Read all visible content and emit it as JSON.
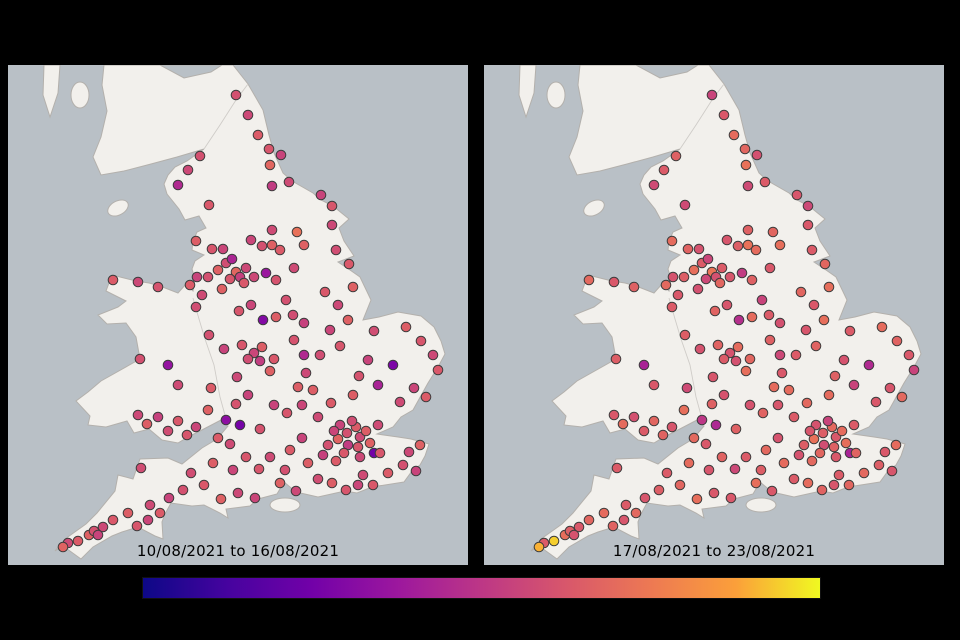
{
  "figure": {
    "background": "#000000",
    "sea_color": "#b9c0c6",
    "land_color": "#f2f0ec",
    "coast_color": "#b3b0ac",
    "border_color": "#cfccc8"
  },
  "panels": [
    {
      "label": "10/08/2021 to 16/08/2021"
    },
    {
      "label": "17/08/2021 to 23/08/2021"
    }
  ],
  "colorbar": {
    "colormap": "plasma",
    "orientation": "horizontal",
    "tick_labels": [],
    "stops": [
      "#0d0887",
      "#46039f",
      "#7201a8",
      "#9c179e",
      "#bd3786",
      "#d8576b",
      "#ed7953",
      "#fb9f3a",
      "#f0f921"
    ]
  },
  "chart_data": {
    "type": "scatter",
    "title": "",
    "legend": "plasma colorbar, no numeric tick labels shown",
    "panel_labels": [
      "10/08/2021 to 16/08/2021",
      "17/08/2021 to 23/08/2021"
    ],
    "marker": {
      "radius": 4.8,
      "edge_color": "#3d3d3d",
      "edge_width": 1
    },
    "value_scale": {
      "min": 0,
      "max": 1
    },
    "sites_format": "[x, y, value_week1, value_week2] ; x,y in 460x500 map coords ; values are colormap fractions",
    "sites": [
      [
        261,
        84,
        0.62,
        0.68
      ],
      [
        273,
        90,
        0.55,
        0.6
      ],
      [
        262,
        100,
        0.68,
        0.72
      ],
      [
        281,
        117,
        0.58,
        0.64
      ],
      [
        264,
        121,
        0.52,
        0.58
      ],
      [
        250,
        70,
        0.64,
        0.7
      ],
      [
        240,
        50,
        0.57,
        0.63
      ],
      [
        228,
        30,
        0.6,
        0.55
      ],
      [
        192,
        91,
        0.6,
        0.66
      ],
      [
        170,
        120,
        0.45,
        0.58
      ],
      [
        201,
        140,
        0.63,
        0.58
      ],
      [
        180,
        105,
        0.57,
        0.64
      ],
      [
        289,
        167,
        0.72,
        0.68
      ],
      [
        264,
        165,
        0.58,
        0.66
      ],
      [
        324,
        141,
        0.62,
        0.57
      ],
      [
        313,
        130,
        0.55,
        0.62
      ],
      [
        264,
        180,
        0.66,
        0.72
      ],
      [
        254,
        181,
        0.6,
        0.65
      ],
      [
        243,
        175,
        0.56,
        0.62
      ],
      [
        272,
        185,
        0.64,
        0.7
      ],
      [
        286,
        203,
        0.58,
        0.63
      ],
      [
        268,
        215,
        0.61,
        0.66
      ],
      [
        258,
        208,
        0.37,
        0.52
      ],
      [
        296,
        180,
        0.66,
        0.71
      ],
      [
        328,
        185,
        0.59,
        0.64
      ],
      [
        341,
        199,
        0.63,
        0.68
      ],
      [
        324,
        160,
        0.57,
        0.63
      ],
      [
        204,
        184,
        0.62,
        0.67
      ],
      [
        215,
        184,
        0.56,
        0.61
      ],
      [
        188,
        176,
        0.65,
        0.7
      ],
      [
        218,
        198,
        0.59,
        0.64
      ],
      [
        228,
        207,
        0.68,
        0.73
      ],
      [
        232,
        212,
        0.54,
        0.6
      ],
      [
        222,
        214,
        0.62,
        0.57
      ],
      [
        238,
        203,
        0.57,
        0.64
      ],
      [
        210,
        205,
        0.66,
        0.71
      ],
      [
        200,
        212,
        0.6,
        0.65
      ],
      [
        189,
        212,
        0.55,
        0.61
      ],
      [
        182,
        220,
        0.64,
        0.69
      ],
      [
        194,
        230,
        0.58,
        0.63
      ],
      [
        224,
        194,
        0.43,
        0.56
      ],
      [
        236,
        218,
        0.63,
        0.68
      ],
      [
        246,
        212,
        0.57,
        0.62
      ],
      [
        214,
        224,
        0.66,
        0.6
      ],
      [
        150,
        222,
        0.61,
        0.66
      ],
      [
        130,
        217,
        0.57,
        0.63
      ],
      [
        105,
        215,
        0.64,
        0.69
      ],
      [
        188,
        242,
        0.59,
        0.64
      ],
      [
        231,
        246,
        0.62,
        0.67
      ],
      [
        243,
        240,
        0.56,
        0.62
      ],
      [
        268,
        252,
        0.65,
        0.7
      ],
      [
        285,
        250,
        0.59,
        0.64
      ],
      [
        296,
        258,
        0.54,
        0.6
      ],
      [
        317,
        227,
        0.63,
        0.68
      ],
      [
        330,
        240,
        0.57,
        0.63
      ],
      [
        345,
        222,
        0.66,
        0.71
      ],
      [
        278,
        235,
        0.6,
        0.55
      ],
      [
        255,
        255,
        0.3,
        0.47
      ],
      [
        234,
        280,
        0.62,
        0.67
      ],
      [
        246,
        288,
        0.56,
        0.61
      ],
      [
        254,
        282,
        0.65,
        0.7
      ],
      [
        240,
        294,
        0.59,
        0.64
      ],
      [
        252,
        296,
        0.53,
        0.6
      ],
      [
        266,
        294,
        0.63,
        0.68
      ],
      [
        229,
        312,
        0.57,
        0.62
      ],
      [
        262,
        306,
        0.66,
        0.71
      ],
      [
        201,
        270,
        0.6,
        0.65
      ],
      [
        216,
        284,
        0.55,
        0.61
      ],
      [
        203,
        323,
        0.64,
        0.58
      ],
      [
        286,
        275,
        0.61,
        0.66
      ],
      [
        298,
        308,
        0.57,
        0.63
      ],
      [
        305,
        325,
        0.65,
        0.7
      ],
      [
        312,
        290,
        0.59,
        0.64
      ],
      [
        332,
        281,
        0.62,
        0.67
      ],
      [
        322,
        265,
        0.56,
        0.62
      ],
      [
        340,
        255,
        0.66,
        0.71
      ],
      [
        296,
        290,
        0.45,
        0.57
      ],
      [
        413,
        276,
        0.62,
        0.67
      ],
      [
        425,
        290,
        0.57,
        0.63
      ],
      [
        398,
        262,
        0.65,
        0.7
      ],
      [
        366,
        266,
        0.59,
        0.64
      ],
      [
        430,
        305,
        0.63,
        0.55
      ],
      [
        406,
        323,
        0.56,
        0.62
      ],
      [
        418,
        332,
        0.64,
        0.69
      ],
      [
        392,
        337,
        0.58,
        0.63
      ],
      [
        385,
        300,
        0.28,
        0.45
      ],
      [
        370,
        320,
        0.42,
        0.55
      ],
      [
        351,
        311,
        0.61,
        0.66
      ],
      [
        360,
        295,
        0.55,
        0.61
      ],
      [
        345,
        330,
        0.65,
        0.7
      ],
      [
        279,
        348,
        0.62,
        0.67
      ],
      [
        294,
        340,
        0.56,
        0.62
      ],
      [
        323,
        338,
        0.64,
        0.69
      ],
      [
        310,
        352,
        0.58,
        0.64
      ],
      [
        252,
        364,
        0.61,
        0.66
      ],
      [
        266,
        340,
        0.55,
        0.61
      ],
      [
        290,
        322,
        0.65,
        0.7
      ],
      [
        339,
        368,
        0.6,
        0.65
      ],
      [
        332,
        360,
        0.55,
        0.61
      ],
      [
        348,
        362,
        0.64,
        0.69
      ],
      [
        352,
        372,
        0.58,
        0.63
      ],
      [
        330,
        374,
        0.67,
        0.72
      ],
      [
        340,
        380,
        0.52,
        0.59
      ],
      [
        350,
        382,
        0.62,
        0.66
      ],
      [
        326,
        366,
        0.56,
        0.62
      ],
      [
        358,
        366,
        0.65,
        0.7
      ],
      [
        344,
        356,
        0.59,
        0.55
      ],
      [
        336,
        388,
        0.63,
        0.68
      ],
      [
        352,
        392,
        0.57,
        0.63
      ],
      [
        362,
        378,
        0.66,
        0.71
      ],
      [
        320,
        380,
        0.6,
        0.65
      ],
      [
        315,
        390,
        0.54,
        0.61
      ],
      [
        328,
        396,
        0.64,
        0.69
      ],
      [
        370,
        360,
        0.58,
        0.64
      ],
      [
        366,
        388,
        0.25,
        0.42
      ],
      [
        372,
        388,
        0.62,
        0.67
      ],
      [
        401,
        387,
        0.57,
        0.63
      ],
      [
        412,
        380,
        0.66,
        0.7
      ],
      [
        395,
        400,
        0.6,
        0.65
      ],
      [
        408,
        406,
        0.55,
        0.62
      ],
      [
        380,
        408,
        0.64,
        0.69
      ],
      [
        355,
        410,
        0.58,
        0.64
      ],
      [
        338,
        425,
        0.62,
        0.67
      ],
      [
        350,
        420,
        0.56,
        0.62
      ],
      [
        324,
        418,
        0.65,
        0.7
      ],
      [
        310,
        414,
        0.59,
        0.64
      ],
      [
        365,
        420,
        0.63,
        0.68
      ],
      [
        288,
        426,
        0.57,
        0.63
      ],
      [
        272,
        418,
        0.66,
        0.71
      ],
      [
        277,
        405,
        0.6,
        0.65
      ],
      [
        294,
        373,
        0.55,
        0.61
      ],
      [
        282,
        385,
        0.64,
        0.69
      ],
      [
        262,
        392,
        0.58,
        0.64
      ],
      [
        251,
        404,
        0.62,
        0.57
      ],
      [
        247,
        433,
        0.56,
        0.63
      ],
      [
        300,
        398,
        0.65,
        0.7
      ],
      [
        228,
        339,
        0.61,
        0.66
      ],
      [
        240,
        330,
        0.55,
        0.61
      ],
      [
        210,
        373,
        0.64,
        0.69
      ],
      [
        222,
        379,
        0.58,
        0.63
      ],
      [
        218,
        355,
        0.33,
        0.5
      ],
      [
        232,
        360,
        0.26,
        0.44
      ],
      [
        238,
        392,
        0.62,
        0.67
      ],
      [
        225,
        405,
        0.56,
        0.62
      ],
      [
        205,
        398,
        0.65,
        0.7
      ],
      [
        183,
        408,
        0.59,
        0.64
      ],
      [
        196,
        420,
        0.63,
        0.68
      ],
      [
        230,
        428,
        0.57,
        0.63
      ],
      [
        213,
        434,
        0.66,
        0.71
      ],
      [
        175,
        425,
        0.6,
        0.65
      ],
      [
        161,
        433,
        0.55,
        0.62
      ],
      [
        152,
        448,
        0.64,
        0.69
      ],
      [
        142,
        440,
        0.58,
        0.64
      ],
      [
        129,
        461,
        0.62,
        0.67
      ],
      [
        140,
        455,
        0.56,
        0.62
      ],
      [
        120,
        448,
        0.65,
        0.7
      ],
      [
        133,
        403,
        0.59,
        0.64
      ],
      [
        105,
        455,
        0.63,
        0.68
      ],
      [
        95,
        462,
        0.57,
        0.63
      ],
      [
        81,
        470,
        0.66,
        0.71
      ],
      [
        86,
        466,
        0.6,
        0.65
      ],
      [
        90,
        470,
        0.55,
        0.61
      ],
      [
        70,
        476,
        0.64,
        0.94
      ],
      [
        60,
        478,
        0.58,
        0.64
      ],
      [
        55,
        482,
        0.67,
        0.9
      ],
      [
        179,
        370,
        0.62,
        0.67
      ],
      [
        188,
        362,
        0.56,
        0.62
      ],
      [
        139,
        359,
        0.65,
        0.7
      ],
      [
        160,
        366,
        0.59,
        0.64
      ],
      [
        150,
        352,
        0.54,
        0.6
      ],
      [
        170,
        356,
        0.63,
        0.68
      ],
      [
        130,
        350,
        0.57,
        0.63
      ],
      [
        200,
        345,
        0.66,
        0.71
      ],
      [
        132,
        294,
        0.6,
        0.65
      ],
      [
        160,
        300,
        0.35,
        0.42
      ],
      [
        170,
        320,
        0.58,
        0.63
      ]
    ]
  }
}
